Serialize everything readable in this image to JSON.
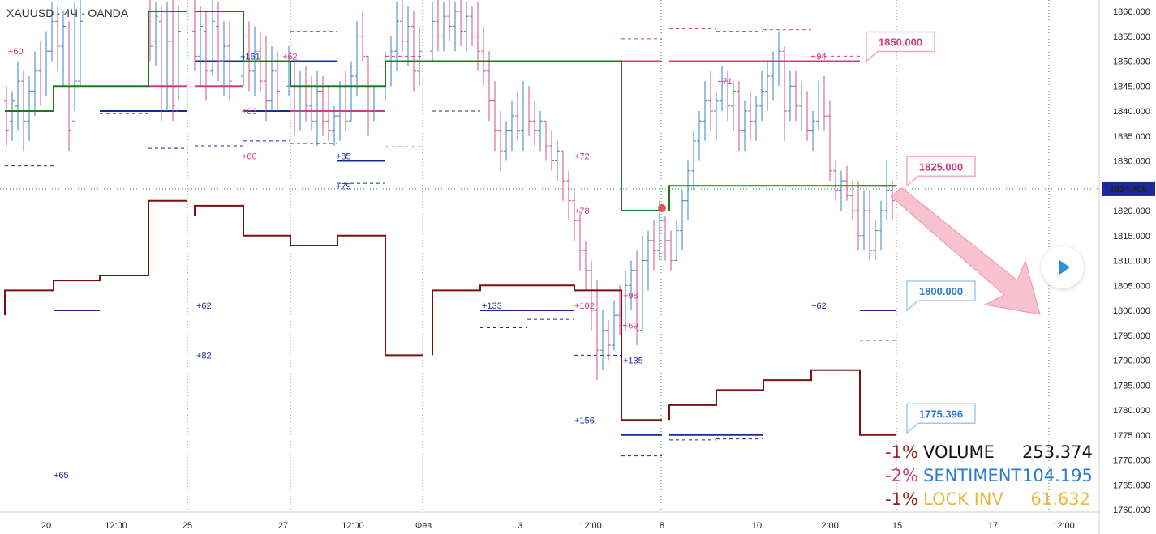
{
  "header": {
    "symbol": "XAUUSD · 4Ч · OANDA"
  },
  "colors": {
    "green": "#1f7a1f",
    "maroon": "#7a1010",
    "navy": "#1a2a9a",
    "magenta": "#d23c7a",
    "pink": "#f7b6c8",
    "blue": "#2b7bd0",
    "gold": "#e9b83a"
  },
  "chart_data": {
    "type": "candlestick-with-levels",
    "y_ticks": [
      "1860.000",
      "1855.000",
      "1850.000",
      "1845.000",
      "1840.000",
      "1835.000",
      "1830.000",
      "1825.000",
      "1820.000",
      "1815.000",
      "1810.000",
      "1805.000",
      "1800.000",
      "1795.000",
      "1790.000",
      "1785.000",
      "1780.000",
      "1775.000",
      "1770.000",
      "1765.000",
      "1760.000"
    ],
    "ylim": [
      1759,
      1862
    ],
    "x_ticks": [
      "20",
      "12:00",
      "25",
      "27",
      "12:00",
      "Фев",
      "3",
      "12:00",
      "8",
      "10",
      "12:00",
      "15",
      "17",
      "12:00"
    ],
    "current_price": "1824.400",
    "callouts": [
      {
        "label": "1850.000",
        "value": 1850,
        "color": "#d23c7a"
      },
      {
        "label": "1825.000",
        "value": 1825,
        "color": "#d23c7a"
      },
      {
        "label": "1800.000",
        "value": 1800,
        "color": "#2b7bd0"
      },
      {
        "label": "1775.396",
        "value": 1775.4,
        "color": "#2b7bd0"
      }
    ],
    "tags": [
      {
        "text": "+60",
        "color": "#d23c7a"
      },
      {
        "text": "+161",
        "color": "#1a2a9a"
      },
      {
        "text": "+62",
        "color": "#d23c7a"
      },
      {
        "text": "+63",
        "color": "#d23c7a"
      },
      {
        "text": "+60",
        "color": "#d23c7a"
      },
      {
        "text": "+85",
        "color": "#1a2a9a"
      },
      {
        "text": "+79",
        "color": "#1a2a9a"
      },
      {
        "text": "+72",
        "color": "#d23c7a"
      },
      {
        "text": "+78",
        "color": "#d23c7a"
      },
      {
        "text": "+71",
        "color": "#d23c7a"
      },
      {
        "text": "+94",
        "color": "#d23c7a"
      },
      {
        "text": "+62",
        "color": "#1a2a9a"
      },
      {
        "text": "+82",
        "color": "#1a2a9a"
      },
      {
        "text": "+133",
        "color": "#1a2a9a"
      },
      {
        "text": "+102",
        "color": "#d23c7a"
      },
      {
        "text": "+98",
        "color": "#d23c7a"
      },
      {
        "text": "+69",
        "color": "#d23c7a"
      },
      {
        "text": "+135",
        "color": "#1a2a9a"
      },
      {
        "text": "+62",
        "color": "#1a2a9a"
      },
      {
        "text": "+156",
        "color": "#1a2a9a"
      },
      {
        "text": "+65",
        "color": "#1a2a9a"
      }
    ]
  },
  "legend": [
    {
      "pct": "-1%",
      "name": "VOLUME",
      "value": "253.374",
      "pct_color": "#a21c1c",
      "name_color": "#111111",
      "value_color": "#111111"
    },
    {
      "pct": "-2%",
      "name": "SENTIMENT",
      "value": "104.195",
      "pct_color": "#d23c7a",
      "name_color": "#2b7bd0",
      "value_color": "#2b7bd0"
    },
    {
      "pct": "-1%",
      "name": "LOCK INV",
      "value": "61.632",
      "pct_color": "#a21c1c",
      "name_color": "#e9b83a",
      "value_color": "#e9b83a"
    }
  ]
}
